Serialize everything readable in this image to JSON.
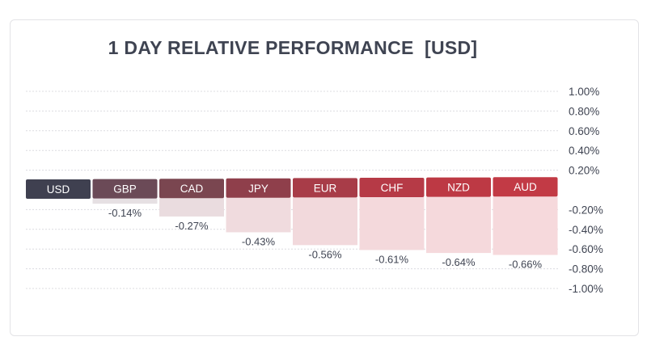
{
  "chart_data": {
    "type": "bar",
    "title": "1 DAY RELATIVE PERFORMANCE  [USD]",
    "categories": [
      "USD",
      "GBP",
      "CAD",
      "JPY",
      "EUR",
      "CHF",
      "NZD",
      "AUD"
    ],
    "values": [
      0.0,
      -0.14,
      -0.27,
      -0.43,
      -0.56,
      -0.61,
      -0.64,
      -0.66
    ],
    "value_labels": [
      "",
      "-0.14%",
      "-0.27%",
      "-0.43%",
      "-0.56%",
      "-0.61%",
      "-0.64%",
      "-0.66%"
    ],
    "y_ticks": [
      1.0,
      0.8,
      0.6,
      0.4,
      0.2,
      -0.2,
      -0.4,
      -0.6,
      -0.8,
      -1.0
    ],
    "y_tick_labels": [
      "1.00%",
      "0.80%",
      "0.60%",
      "0.40%",
      "0.20%",
      "-0.20%",
      "-0.40%",
      "-0.60%",
      "-0.80%",
      "-1.00%"
    ],
    "ylim": [
      -1.0,
      1.0
    ],
    "grid": true,
    "y_axis_position": "right",
    "label_colors": [
      "#3f4050",
      "#6b4a57",
      "#7a4650",
      "#8f3f4b",
      "#a83c48",
      "#b63a46",
      "#bd3944",
      "#c23a45"
    ],
    "fill_colors": [
      "#e6e6ea",
      "#e6e0e3",
      "#eadcdf",
      "#f0dbde",
      "#f2d9dc",
      "#f4d9dc",
      "#f5d9dc",
      "#f6d9dc"
    ]
  }
}
